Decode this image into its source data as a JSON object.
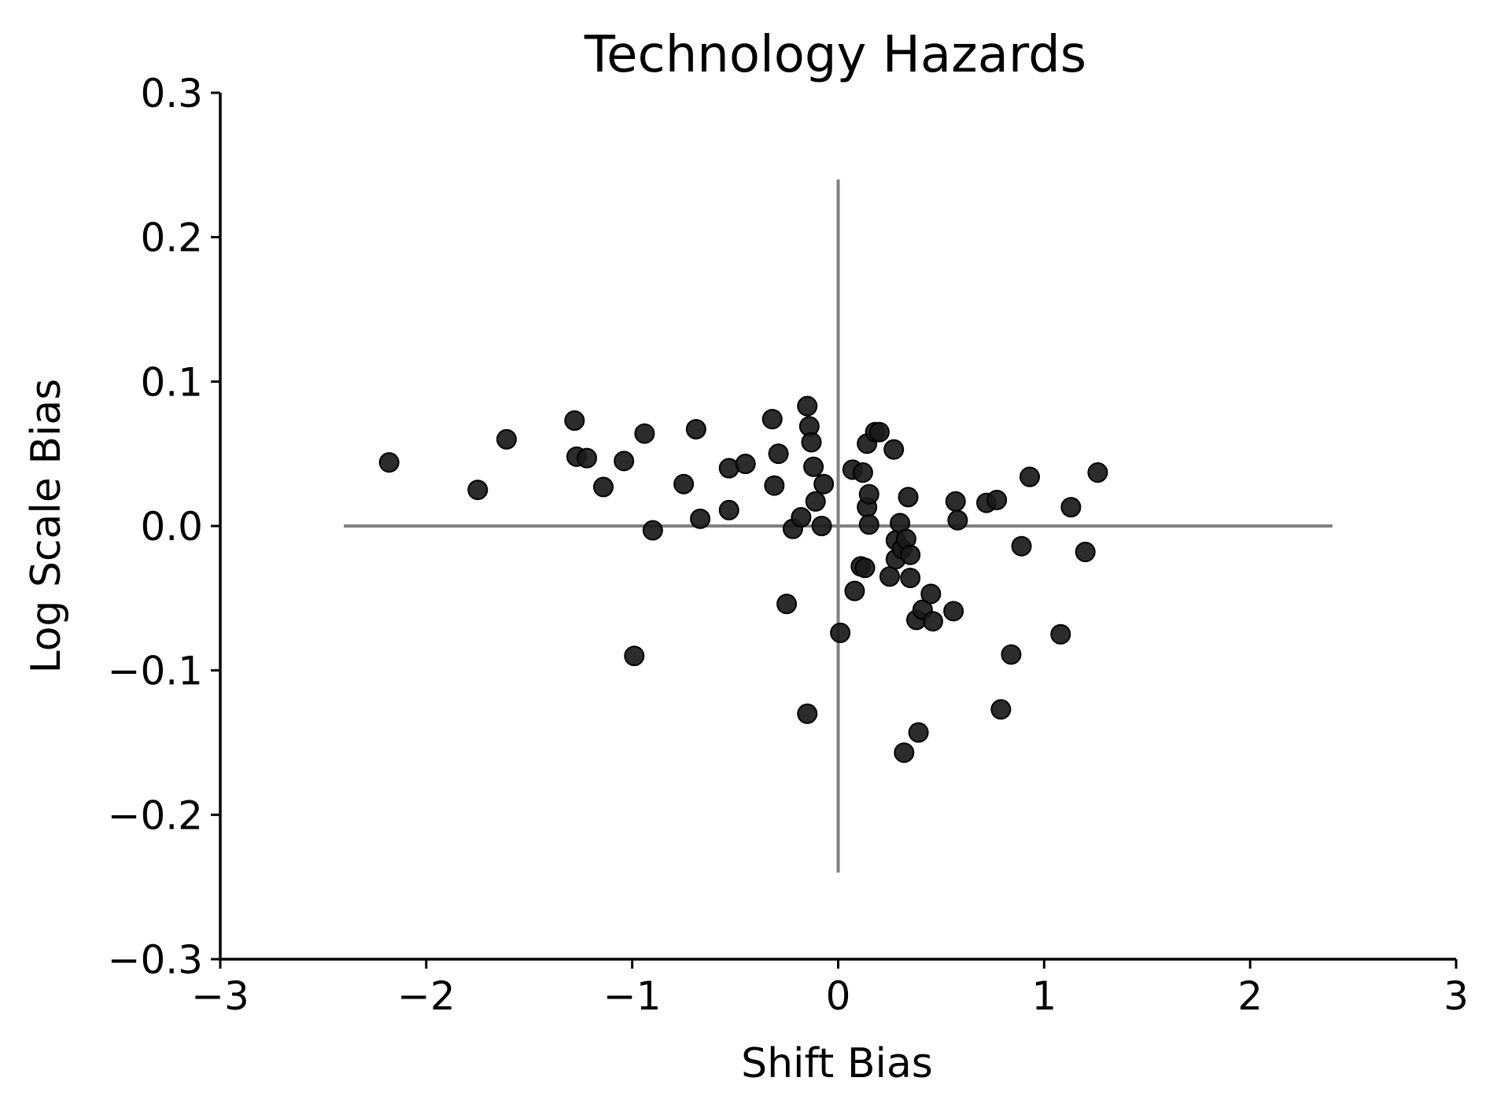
{
  "chart_data": {
    "type": "scatter",
    "title": "Technology Hazards",
    "xlabel": "Shift Bias",
    "ylabel": "Log Scale Bias",
    "xlim": [
      -3,
      3
    ],
    "ylim": [
      -0.3,
      0.3
    ],
    "grid": false,
    "legend": "none",
    "x_ticks": [
      -3,
      -2,
      -1,
      0,
      1,
      2,
      3
    ],
    "x_tick_labels": [
      "−3",
      "−2",
      "−1",
      "0",
      "1",
      "2",
      "3"
    ],
    "y_ticks": [
      0.3,
      0.2,
      0.1,
      0.0,
      -0.1,
      -0.2,
      -0.3
    ],
    "y_tick_labels": [
      "0.3",
      "0.2",
      "0.1",
      "0.0",
      "−0.1",
      "−0.2",
      "−0.3"
    ],
    "reference_lines": {
      "horizontal": {
        "y": 0,
        "x_from": -2.4,
        "x_to": 2.4
      },
      "vertical": {
        "x": 0,
        "y_from": -0.24,
        "y_to": 0.24
      },
      "color": "#808080"
    },
    "point_color": "#1a1a1a",
    "points": [
      {
        "x": -2.18,
        "y": 0.044
      },
      {
        "x": -1.75,
        "y": 0.025
      },
      {
        "x": -1.61,
        "y": 0.06
      },
      {
        "x": -1.28,
        "y": 0.073
      },
      {
        "x": -1.27,
        "y": 0.048
      },
      {
        "x": -1.22,
        "y": 0.047
      },
      {
        "x": -1.14,
        "y": 0.027
      },
      {
        "x": -1.04,
        "y": 0.045
      },
      {
        "x": -0.94,
        "y": 0.064
      },
      {
        "x": -0.9,
        "y": -0.003
      },
      {
        "x": -0.99,
        "y": -0.09
      },
      {
        "x": -0.75,
        "y": 0.029
      },
      {
        "x": -0.69,
        "y": 0.067
      },
      {
        "x": -0.67,
        "y": 0.005
      },
      {
        "x": -0.53,
        "y": 0.04
      },
      {
        "x": -0.53,
        "y": 0.011
      },
      {
        "x": -0.45,
        "y": 0.043
      },
      {
        "x": -0.32,
        "y": 0.074
      },
      {
        "x": -0.31,
        "y": 0.028
      },
      {
        "x": -0.29,
        "y": 0.05
      },
      {
        "x": -0.25,
        "y": -0.054
      },
      {
        "x": -0.22,
        "y": -0.002
      },
      {
        "x": -0.18,
        "y": 0.006
      },
      {
        "x": -0.15,
        "y": 0.083
      },
      {
        "x": -0.14,
        "y": 0.069
      },
      {
        "x": -0.13,
        "y": 0.058
      },
      {
        "x": -0.12,
        "y": 0.041
      },
      {
        "x": -0.11,
        "y": 0.017
      },
      {
        "x": -0.15,
        "y": -0.13
      },
      {
        "x": -0.07,
        "y": 0.029
      },
      {
        "x": -0.08,
        "y": 0.0
      },
      {
        "x": 0.01,
        "y": -0.074
      },
      {
        "x": 0.07,
        "y": 0.039
      },
      {
        "x": 0.08,
        "y": -0.045
      },
      {
        "x": 0.11,
        "y": -0.028
      },
      {
        "x": 0.12,
        "y": 0.037
      },
      {
        "x": 0.13,
        "y": -0.029
      },
      {
        "x": 0.14,
        "y": 0.057
      },
      {
        "x": 0.14,
        "y": 0.013
      },
      {
        "x": 0.15,
        "y": 0.022
      },
      {
        "x": 0.15,
        "y": 0.001
      },
      {
        "x": 0.18,
        "y": 0.065
      },
      {
        "x": 0.2,
        "y": 0.065
      },
      {
        "x": 0.25,
        "y": -0.035
      },
      {
        "x": 0.27,
        "y": 0.053
      },
      {
        "x": 0.28,
        "y": -0.01
      },
      {
        "x": 0.28,
        "y": -0.023
      },
      {
        "x": 0.3,
        "y": 0.002
      },
      {
        "x": 0.31,
        "y": -0.016
      },
      {
        "x": 0.33,
        "y": -0.009
      },
      {
        "x": 0.34,
        "y": 0.02
      },
      {
        "x": 0.35,
        "y": -0.02
      },
      {
        "x": 0.35,
        "y": -0.036
      },
      {
        "x": 0.38,
        "y": -0.065
      },
      {
        "x": 0.39,
        "y": -0.143
      },
      {
        "x": 0.41,
        "y": -0.058
      },
      {
        "x": 0.32,
        "y": -0.157
      },
      {
        "x": 0.45,
        "y": -0.047
      },
      {
        "x": 0.46,
        "y": -0.066
      },
      {
        "x": 0.56,
        "y": -0.059
      },
      {
        "x": 0.57,
        "y": 0.017
      },
      {
        "x": 0.58,
        "y": 0.004
      },
      {
        "x": 0.72,
        "y": 0.016
      },
      {
        "x": 0.77,
        "y": 0.018
      },
      {
        "x": 0.79,
        "y": -0.127
      },
      {
        "x": 0.84,
        "y": -0.089
      },
      {
        "x": 0.89,
        "y": -0.014
      },
      {
        "x": 0.93,
        "y": 0.034
      },
      {
        "x": 1.08,
        "y": -0.075
      },
      {
        "x": 1.13,
        "y": 0.013
      },
      {
        "x": 1.2,
        "y": -0.018
      },
      {
        "x": 1.26,
        "y": 0.037
      }
    ]
  }
}
